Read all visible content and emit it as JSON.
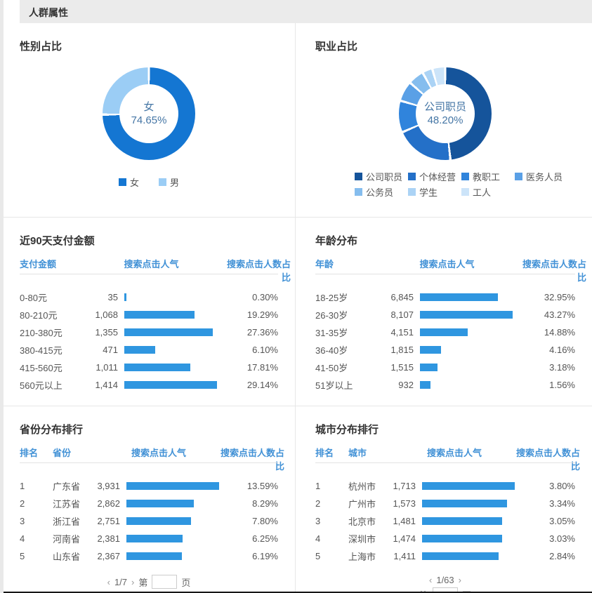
{
  "page": {
    "title": "人群属性",
    "bar_color": "#2f96e0",
    "header_link_color": "#4191d6"
  },
  "charts": {
    "gender": {
      "title": "性别占比",
      "center": {
        "label": "女",
        "value": "74.65%"
      },
      "pie": {
        "labels": [
          "女",
          "男"
        ],
        "values": [
          74.65,
          25.35
        ],
        "colors": [
          "#1476d2",
          "#9bcdf5"
        ]
      }
    },
    "occupation": {
      "title": "职业占比",
      "center": {
        "label": "公司职员",
        "value": "48.20%"
      },
      "pie": {
        "labels": [
          "公司职员",
          "个体经营",
          "教职工",
          "医务人员",
          "公务员",
          "学生",
          "工人"
        ],
        "values": [
          48.2,
          20.3,
          11.0,
          7.0,
          5.5,
          3.5,
          4.5
        ],
        "colors": [
          "#15549b",
          "#2470c8",
          "#3084dc",
          "#5aa0e6",
          "#85bdee",
          "#abd3f5",
          "#cce4f9"
        ]
      }
    }
  },
  "tables": {
    "payment": {
      "title": "近90天支付金额",
      "columns": [
        "支付金额",
        "搜索点击人气",
        "搜索点击人数占比"
      ],
      "rows": [
        {
          "label": "0-80元",
          "value": "35",
          "num": 35,
          "pct": "0.30%"
        },
        {
          "label": "80-210元",
          "value": "1,068",
          "num": 1068,
          "pct": "19.29%"
        },
        {
          "label": "210-380元",
          "value": "1,355",
          "num": 1355,
          "pct": "27.36%"
        },
        {
          "label": "380-415元",
          "value": "471",
          "num": 471,
          "pct": "6.10%"
        },
        {
          "label": "415-560元",
          "value": "1,011",
          "num": 1011,
          "pct": "17.81%"
        },
        {
          "label": "560元以上",
          "value": "1,414",
          "num": 1414,
          "pct": "29.14%"
        }
      ]
    },
    "age": {
      "title": "年龄分布",
      "columns": [
        "年龄",
        "搜索点击人气",
        "搜索点击人数占比"
      ],
      "rows": [
        {
          "label": "18-25岁",
          "value": "6,845",
          "num": 6845,
          "pct": "32.95%"
        },
        {
          "label": "26-30岁",
          "value": "8,107",
          "num": 8107,
          "pct": "43.27%"
        },
        {
          "label": "31-35岁",
          "value": "4,151",
          "num": 4151,
          "pct": "14.88%"
        },
        {
          "label": "36-40岁",
          "value": "1,815",
          "num": 1815,
          "pct": "4.16%"
        },
        {
          "label": "41-50岁",
          "value": "1,515",
          "num": 1515,
          "pct": "3.18%"
        },
        {
          "label": "51岁以上",
          "value": "932",
          "num": 932,
          "pct": "1.56%"
        }
      ]
    },
    "province": {
      "title": "省份分布排行",
      "columns": [
        "排名",
        "省份",
        "搜索点击人气",
        "搜索点击人数占比"
      ],
      "rows": [
        {
          "rank": "1",
          "label": "广东省",
          "value": "3,931",
          "num": 3931,
          "pct": "13.59%"
        },
        {
          "rank": "2",
          "label": "江苏省",
          "value": "2,862",
          "num": 2862,
          "pct": "8.29%"
        },
        {
          "rank": "3",
          "label": "浙江省",
          "value": "2,751",
          "num": 2751,
          "pct": "7.80%"
        },
        {
          "rank": "4",
          "label": "河南省",
          "value": "2,381",
          "num": 2381,
          "pct": "6.25%"
        },
        {
          "rank": "5",
          "label": "山东省",
          "value": "2,367",
          "num": 2367,
          "pct": "6.19%"
        }
      ],
      "pager": {
        "prev": "‹",
        "text": "1/7",
        "next": "›",
        "goto_prefix": "第",
        "goto_suffix": "页",
        "input_value": ""
      }
    },
    "city": {
      "title": "城市分布排行",
      "columns": [
        "排名",
        "城市",
        "搜索点击人气",
        "搜索点击人数占比"
      ],
      "rows": [
        {
          "rank": "1",
          "label": "杭州市",
          "value": "1,713",
          "num": 1713,
          "pct": "3.80%"
        },
        {
          "rank": "2",
          "label": "广州市",
          "value": "1,573",
          "num": 1573,
          "pct": "3.34%"
        },
        {
          "rank": "3",
          "label": "北京市",
          "value": "1,481",
          "num": 1481,
          "pct": "3.05%"
        },
        {
          "rank": "4",
          "label": "深圳市",
          "value": "1,474",
          "num": 1474,
          "pct": "3.03%"
        },
        {
          "rank": "5",
          "label": "上海市",
          "value": "1,411",
          "num": 1411,
          "pct": "2.84%"
        }
      ],
      "pager": {
        "prev": "‹",
        "text": "1/63",
        "next": "›",
        "goto_prefix": "第",
        "goto_suffix": "页",
        "input_value": ""
      }
    }
  },
  "chart_data": [
    {
      "type": "pie",
      "title": "性别占比",
      "labels": [
        "女",
        "男"
      ],
      "values": [
        74.65,
        25.35
      ],
      "legend_position": "bottom"
    },
    {
      "type": "pie",
      "title": "职业占比",
      "labels": [
        "公司职员",
        "个体经营",
        "教职工",
        "医务人员",
        "公务员",
        "学生",
        "工人"
      ],
      "values": [
        48.2,
        20.3,
        11.0,
        7.0,
        5.5,
        3.5,
        4.5
      ],
      "legend_position": "bottom"
    },
    {
      "type": "bar",
      "title": "近90天支付金额",
      "categories": [
        "0-80元",
        "80-210元",
        "210-380元",
        "380-415元",
        "415-560元",
        "560元以上"
      ],
      "values": [
        35,
        1068,
        1355,
        471,
        1011,
        1414
      ],
      "pct_labels": [
        "0.30%",
        "19.29%",
        "27.36%",
        "6.10%",
        "17.81%",
        "29.14%"
      ],
      "ylabel": "搜索点击人气"
    },
    {
      "type": "bar",
      "title": "年龄分布",
      "categories": [
        "18-25岁",
        "26-30岁",
        "31-35岁",
        "36-40岁",
        "41-50岁",
        "51岁以上"
      ],
      "values": [
        6845,
        8107,
        4151,
        1815,
        1515,
        932
      ],
      "pct_labels": [
        "32.95%",
        "43.27%",
        "14.88%",
        "4.16%",
        "3.18%",
        "1.56%"
      ],
      "ylabel": "搜索点击人气"
    },
    {
      "type": "bar",
      "title": "省份分布排行",
      "categories": [
        "广东省",
        "江苏省",
        "浙江省",
        "河南省",
        "山东省"
      ],
      "values": [
        3931,
        2862,
        2751,
        2381,
        2367
      ],
      "pct_labels": [
        "13.59%",
        "8.29%",
        "7.80%",
        "6.25%",
        "6.19%"
      ],
      "ylabel": "搜索点击人气"
    },
    {
      "type": "bar",
      "title": "城市分布排行",
      "categories": [
        "杭州市",
        "广州市",
        "北京市",
        "深圳市",
        "上海市"
      ],
      "values": [
        1713,
        1573,
        1481,
        1474,
        1411
      ],
      "pct_labels": [
        "3.80%",
        "3.34%",
        "3.05%",
        "3.03%",
        "2.84%"
      ],
      "ylabel": "搜索点击人气"
    }
  ]
}
